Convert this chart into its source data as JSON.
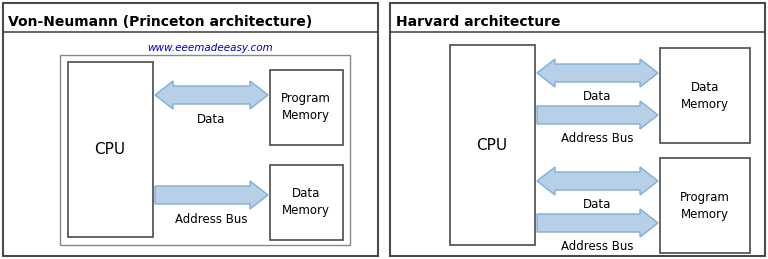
{
  "bg_color": "#ffffff",
  "border_color": "#4a4a4a",
  "arrow_fill": "#b8cfe8",
  "arrow_edge": "#7fafd4",
  "text_color": "#000000",
  "watermark_color": "#0000cc",
  "title_left": "Von-Neumann (Princeton architecture)",
  "title_right": "Harvard architecture",
  "watermark": "www.eeemadeeasy.com",
  "figsize": [
    7.68,
    2.59
  ],
  "dpi": 100
}
